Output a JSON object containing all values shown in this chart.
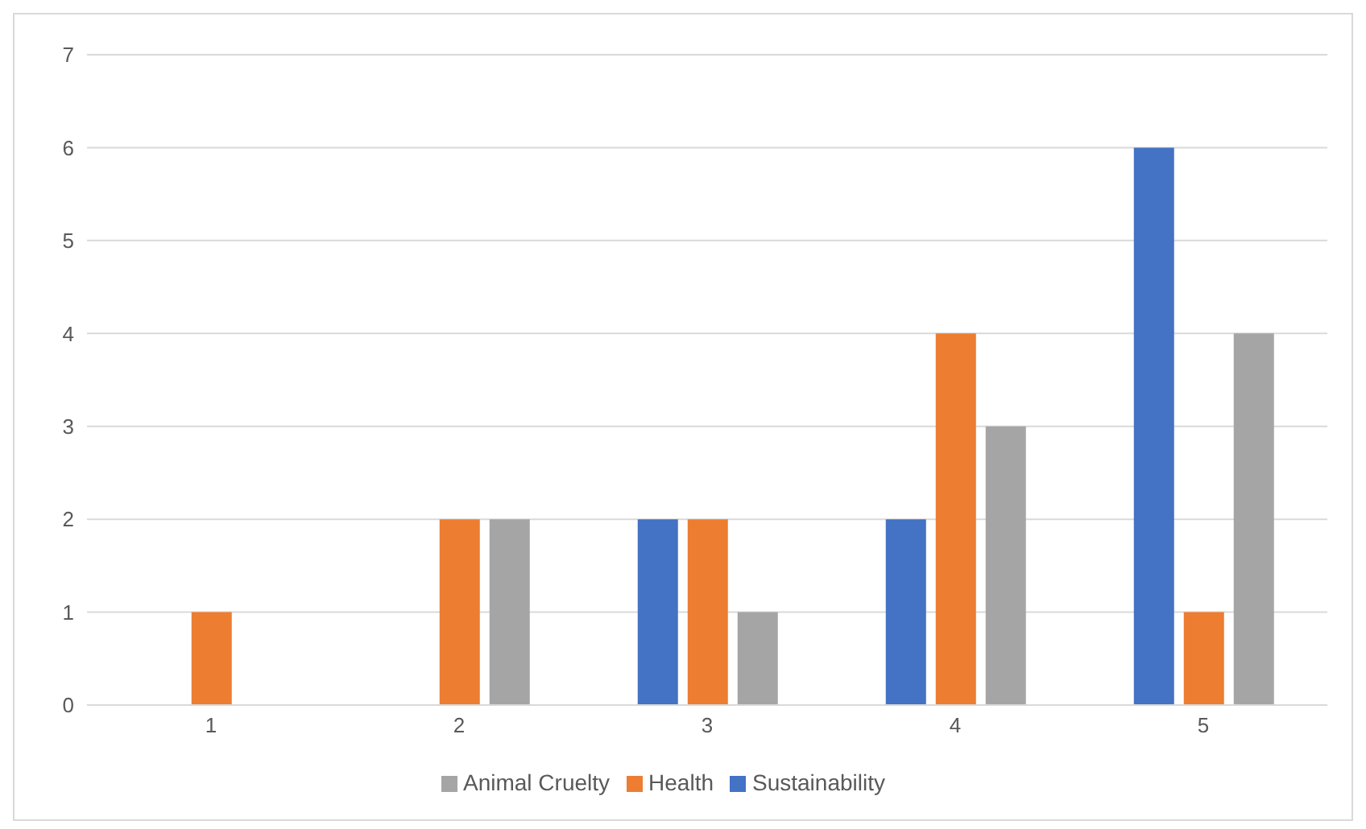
{
  "chart_data": {
    "type": "bar",
    "categories": [
      "1",
      "2",
      "3",
      "4",
      "5"
    ],
    "series": [
      {
        "name": "Sustainability",
        "color": "#4472c4",
        "values": [
          0,
          0,
          2,
          2,
          6
        ]
      },
      {
        "name": "Health",
        "color": "#ed7d31",
        "values": [
          1,
          2,
          2,
          4,
          1
        ]
      },
      {
        "name": "Animal Cruelty",
        "color": "#a5a5a5",
        "values": [
          0,
          2,
          1,
          3,
          4
        ]
      }
    ],
    "ylim": [
      0,
      7
    ],
    "yticks": [
      0,
      1,
      2,
      3,
      4,
      5,
      6,
      7
    ],
    "grid": "y",
    "legend": "bottom"
  }
}
